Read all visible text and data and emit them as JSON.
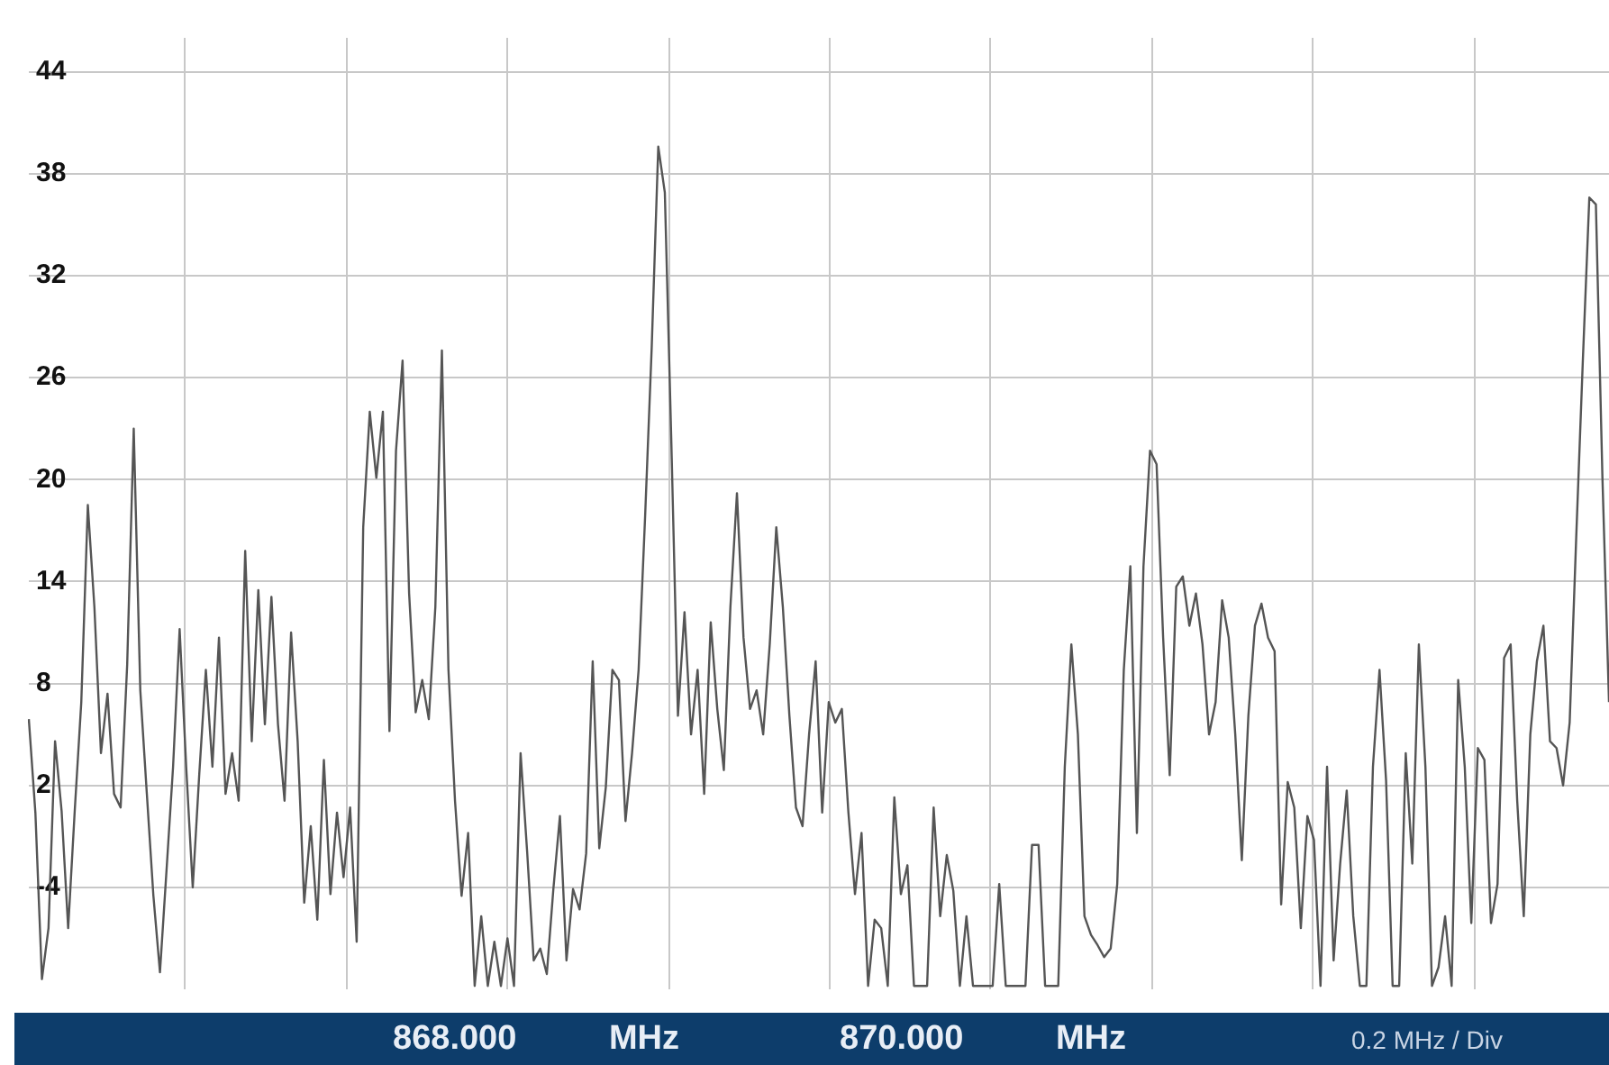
{
  "chart_data": {
    "type": "line",
    "categories": [
      null,
      null,
      null,
      null,
      null,
      null,
      null,
      null,
      null,
      null,
      null,
      null,
      null,
      null,
      null,
      null,
      null,
      null,
      null,
      null,
      null,
      null,
      null,
      null,
      null,
      null,
      null,
      null,
      null,
      null,
      null,
      null,
      null,
      null,
      null,
      null,
      null,
      null,
      null,
      null,
      null,
      null,
      null,
      null,
      null,
      null,
      null,
      null,
      null,
      null,
      null,
      null,
      null,
      null,
      null,
      null,
      null,
      null,
      null,
      null,
      null,
      null,
      null,
      null,
      null,
      null,
      null,
      null,
      null,
      null,
      null,
      null,
      null,
      null,
      null,
      null,
      null,
      null,
      null,
      null,
      null,
      null,
      null,
      null,
      null,
      null,
      null,
      null,
      null,
      null,
      null,
      null,
      null,
      null,
      null,
      null,
      null,
      null,
      null,
      null,
      null,
      null,
      null,
      null,
      null,
      null,
      null,
      null,
      null,
      null,
      null,
      null,
      null,
      null,
      null,
      null,
      null,
      null,
      null,
      null,
      null,
      null,
      null,
      null,
      null,
      null,
      null,
      null,
      null,
      null,
      null,
      null,
      null,
      null,
      null,
      null,
      null,
      null,
      null,
      null,
      null,
      null,
      null,
      null,
      null,
      null,
      null,
      null,
      null,
      null,
      null,
      null,
      null,
      null,
      null,
      null,
      null,
      null,
      null,
      null,
      null,
      null,
      null,
      null,
      null,
      null,
      null,
      null,
      null,
      null,
      null,
      null,
      null,
      null,
      null,
      null,
      null,
      null,
      null,
      null,
      null,
      null,
      null,
      null,
      null,
      null,
      null,
      null,
      null,
      null,
      null,
      null,
      null,
      null,
      null,
      null,
      null,
      null,
      null,
      null,
      null,
      null,
      null,
      null,
      null,
      null,
      null,
      null,
      null,
      null,
      null,
      null,
      null,
      null,
      null,
      null,
      null,
      null,
      null,
      null,
      null,
      null,
      null,
      null,
      null,
      null,
      null,
      null,
      null,
      null,
      null,
      null,
      null,
      null,
      null,
      null,
      null,
      null,
      null,
      null,
      null,
      null
    ],
    "series": [
      {
        "color": "#555555",
        "values": [
          5.9,
          0.4,
          -9.4,
          -6.4,
          4.6,
          0.5,
          -6.4,
          0.5,
          6.9,
          18.5,
          12.5,
          3.9,
          7.4,
          1.5,
          0.7,
          9.1,
          23,
          7.6,
          1.5,
          -4.5,
          -9,
          -3,
          3.1,
          11.2,
          3.1,
          -4,
          2.7,
          8.8,
          3.1,
          10.7,
          1.5,
          3.9,
          1.1,
          15.8,
          4.6,
          13.5,
          5.6,
          13.1,
          5.6,
          1.1,
          11,
          4.6,
          -4.9,
          -0.4,
          -5.9,
          3.5,
          -4.4,
          0.4,
          -3.4,
          0.7,
          -7.2,
          17.2,
          24,
          20.1,
          24,
          5.2,
          21.7,
          27,
          13.3,
          6.3,
          8.2,
          5.9,
          12.5,
          27.6,
          8.8,
          1.1,
          -4.5,
          -0.8,
          -9.8,
          -5.7,
          -9.8,
          -7.2,
          -9.8,
          -7.0,
          -9.8,
          3.9,
          -1.9,
          -8.3,
          -7.6,
          -9.1,
          -4.1,
          0.2,
          -8.3,
          -4.1,
          -5.3,
          -2,
          9.3,
          -1.7,
          1.9,
          8.8,
          8.2,
          -0.1,
          3.9,
          8.8,
          17.9,
          27.8,
          39.6,
          36.9,
          22.1,
          6.1,
          12.2,
          5,
          8.8,
          1.5,
          11.6,
          6.5,
          2.9,
          12.5,
          19.2,
          10.7,
          6.5,
          7.6,
          5,
          10.3,
          17.2,
          12.5,
          6.1,
          0.7,
          -0.4,
          5,
          9.3,
          0.4,
          6.9,
          5.7,
          6.5,
          0.4,
          -4.4,
          -0.8,
          -9.8,
          -5.9,
          -6.4,
          -9.8,
          1.3,
          -4.4,
          -2.7,
          -9.8,
          -9.8,
          -9.8,
          0.7,
          -5.7,
          -2.1,
          -4.2,
          -9.8,
          -5.7,
          -9.8,
          -9.8,
          -9.8,
          -9.8,
          -3.8,
          -9.8,
          -9.8,
          -9.8,
          -9.8,
          -1.5,
          -1.5,
          -9.8,
          -9.8,
          -9.8,
          3.1,
          10.3,
          5,
          -5.7,
          -6.8,
          -7.4,
          -8.1,
          -7.6,
          -3.8,
          8.8,
          14.9,
          -0.8,
          14.9,
          21.7,
          20.9,
          10.7,
          2.6,
          13.7,
          14.3,
          11.4,
          13.3,
          10.3,
          5,
          6.9,
          12.9,
          10.7,
          5,
          -2.4,
          6.1,
          11.4,
          12.7,
          10.7,
          9.9,
          -5,
          2.2,
          0.7,
          -6.4,
          0.2,
          -1.2,
          -9.8,
          3.1,
          -8.3,
          -2.6,
          1.7,
          -5.7,
          -9.8,
          -9.8,
          3.1,
          8.8,
          2.3,
          -9.8,
          -9.8,
          3.9,
          -2.6,
          10.3,
          3.1,
          -9.8,
          -8.7,
          -5.7,
          -9.8,
          8.2,
          3.1,
          -6.1,
          4.2,
          3.5,
          -6.1,
          -3.8,
          9.5,
          10.3,
          1.1,
          -5.7,
          5,
          9.3,
          11.4,
          4.6,
          4.2,
          2,
          5.7,
          16.6,
          26.9,
          36.6,
          36.2,
          20.1,
          6.9
        ]
      }
    ],
    "ylim": [
      -10,
      46
    ],
    "yticks": [
      -4,
      2,
      8,
      14,
      20,
      26,
      32,
      38,
      44
    ],
    "tick_labels": "y",
    "grid": true,
    "marker": "none",
    "annotations": [
      "868.000 MHz",
      "870.000 MHz",
      "0.2 MHz / Div"
    ]
  }
}
